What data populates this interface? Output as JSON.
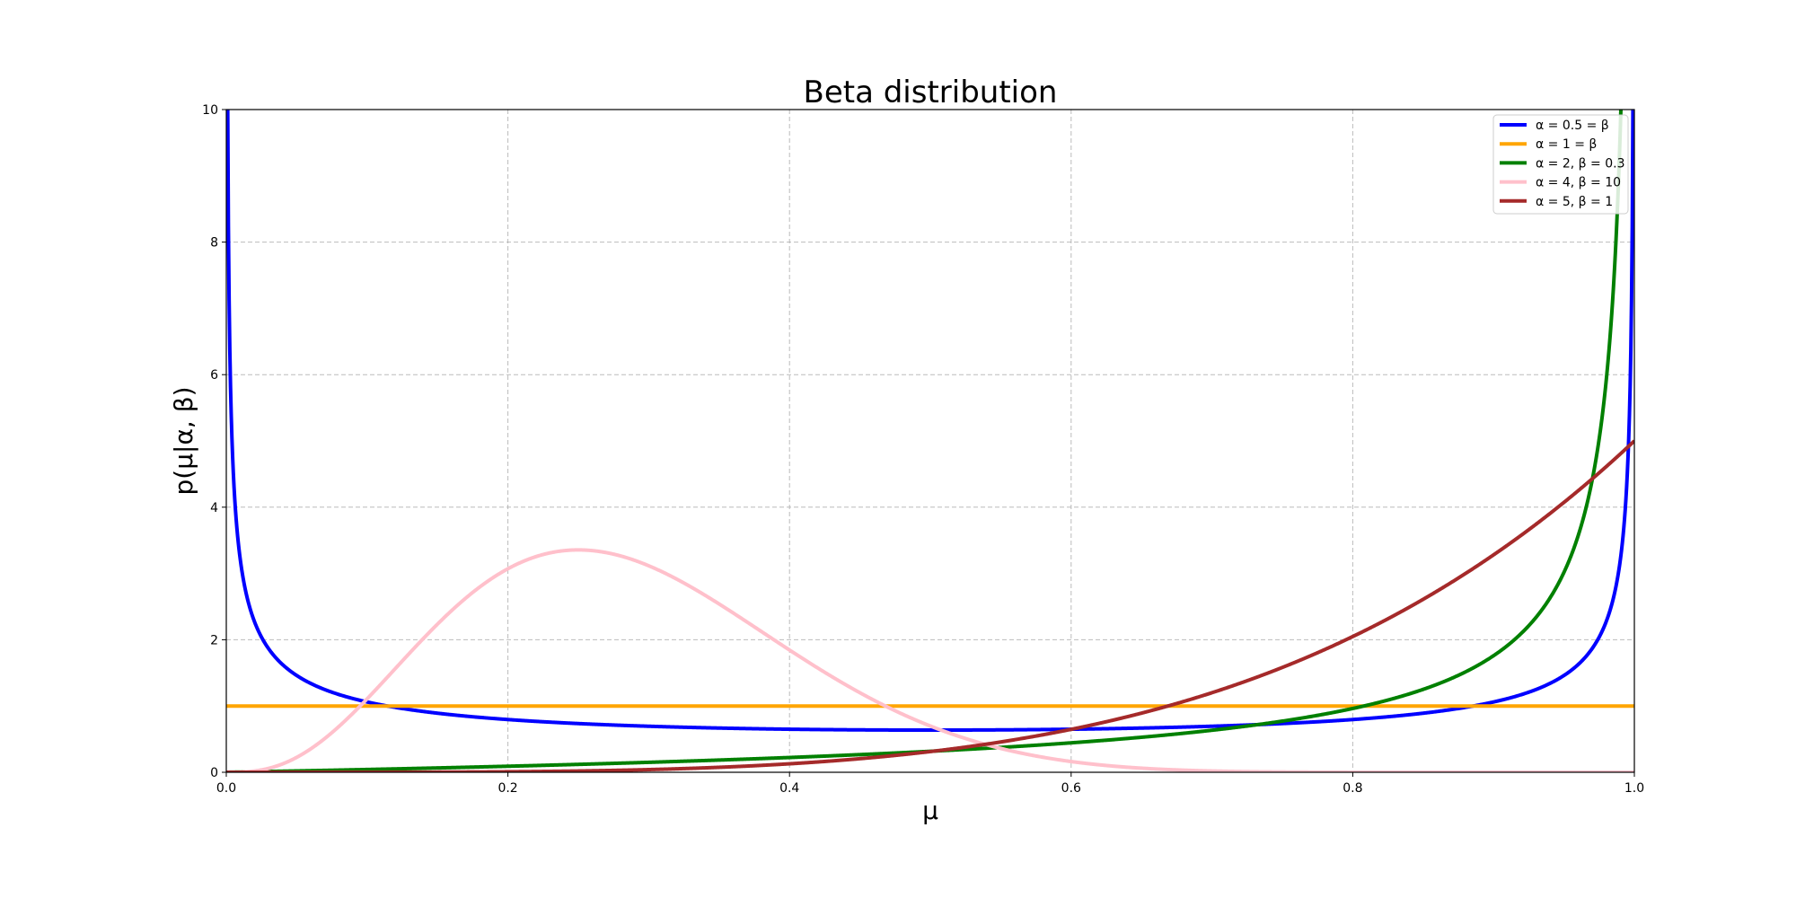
{
  "chart_data": {
    "type": "line",
    "title": "Beta distribution",
    "xlabel": "μ",
    "ylabel": "p(μ|α, β)",
    "xlim": [
      0.0,
      1.0
    ],
    "ylim": [
      0,
      10
    ],
    "xticks": [
      "0.0",
      "0.2",
      "0.4",
      "0.6",
      "0.8",
      "1.0"
    ],
    "yticks": [
      "0",
      "2",
      "4",
      "6",
      "8",
      "10"
    ],
    "grid": true,
    "legend_position": "top-right",
    "series": [
      {
        "name": "α = 0.5 = β",
        "alpha": 0.5,
        "beta": 0.5,
        "color": "#0000ff"
      },
      {
        "name": "α = 1 = β",
        "alpha": 1,
        "beta": 1,
        "color": "#ffa500"
      },
      {
        "name": "α = 2, β = 0.3",
        "alpha": 2,
        "beta": 0.3,
        "color": "#008000"
      },
      {
        "name": "α = 4, β = 10",
        "alpha": 4,
        "beta": 10,
        "color": "#ffc0cb"
      },
      {
        "name": "α = 5, β = 1",
        "alpha": 5,
        "beta": 1,
        "color": "#a52a2a"
      }
    ]
  }
}
